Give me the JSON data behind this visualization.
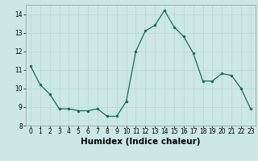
{
  "x": [
    0,
    1,
    2,
    3,
    4,
    5,
    6,
    7,
    8,
    9,
    10,
    11,
    12,
    13,
    14,
    15,
    16,
    17,
    18,
    19,
    20,
    21,
    22,
    23
  ],
  "y": [
    11.2,
    10.2,
    9.7,
    8.9,
    8.9,
    8.8,
    8.8,
    8.9,
    8.5,
    8.5,
    9.3,
    12.0,
    13.1,
    13.4,
    14.2,
    13.3,
    12.8,
    11.9,
    10.4,
    10.4,
    10.8,
    10.7,
    10.0,
    8.9
  ],
  "xlabel": "Humidex (Indice chaleur)",
  "ylim": [
    8,
    14.5
  ],
  "xlim": [
    -0.5,
    23.5
  ],
  "yticks": [
    8,
    9,
    10,
    11,
    12,
    13,
    14
  ],
  "xticks": [
    0,
    1,
    2,
    3,
    4,
    5,
    6,
    7,
    8,
    9,
    10,
    11,
    12,
    13,
    14,
    15,
    16,
    17,
    18,
    19,
    20,
    21,
    22,
    23
  ],
  "line_color": "#1a6b5a",
  "marker_color": "#1a6b5a",
  "bg_color": "#cce8e4",
  "grid_color": "#b8d8d4",
  "axes_bg": "#cce8e4",
  "tick_label_size": 5.5,
  "xlabel_size": 7.5,
  "xlabel_bold": true
}
